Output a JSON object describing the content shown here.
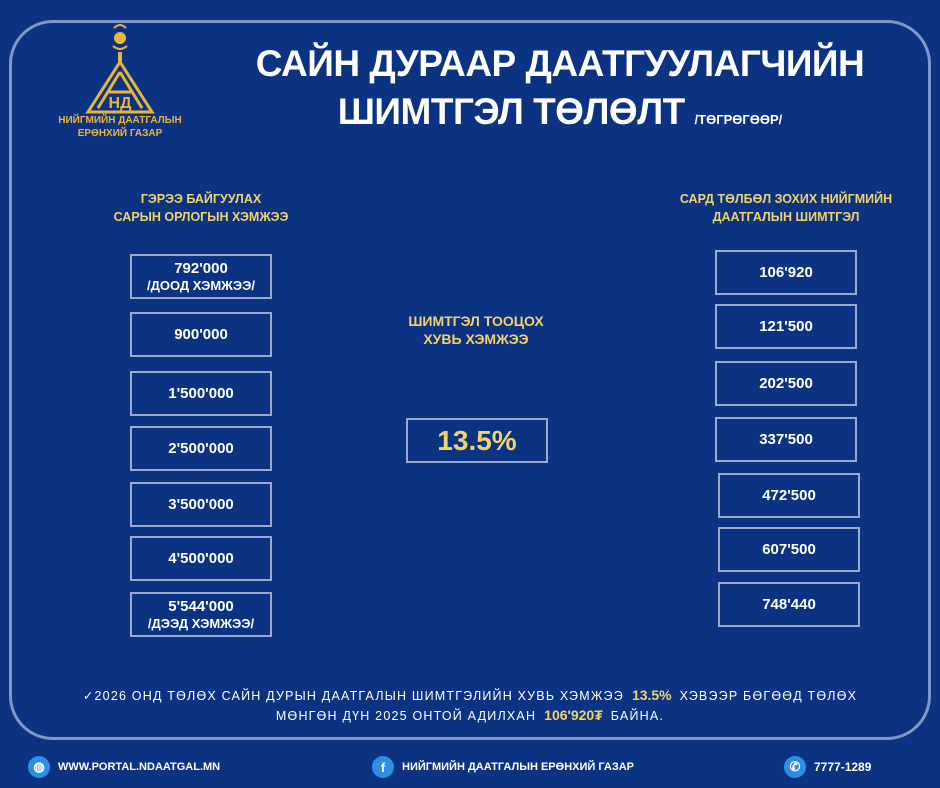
{
  "logo": {
    "line1": "НИЙГМИЙН ДААТГАЛЫН",
    "line2": "ЕРӨНХИЙ ГАЗАР",
    "accent": "#e8b53b"
  },
  "title": {
    "line1": "САЙН ДУРААР ДААТГУУЛАГЧИЙН",
    "line2": "ШИМТГЭЛ ТӨЛӨЛТ",
    "unit": "/ТӨГРӨГӨӨР/"
  },
  "left": {
    "heading1": "ГЭРЭЭ БАЙГУУЛАХ",
    "heading2": "САРЫН ОРЛОГЫН ХЭМЖЭЭ",
    "items": [
      {
        "value": "792'000",
        "note": "/ДООД ХЭМЖЭЭ/"
      },
      {
        "value": "900'000"
      },
      {
        "value": "1'500'000"
      },
      {
        "value": "2'500'000"
      },
      {
        "value": "3'500'000"
      },
      {
        "value": "4'500'000"
      },
      {
        "value": "5'544'000",
        "note": "/ДЭЭД ХЭМЖЭЭ/"
      }
    ]
  },
  "center": {
    "heading1": "ШИМТГЭЛ ТООЦОХ",
    "heading2": "ХУВЬ ХЭМЖЭЭ",
    "rate": "13.5%"
  },
  "right": {
    "heading1": "САРД ТӨЛБӨЛ ЗОХИХ НИЙГМИЙН",
    "heading2": "ДААТГАЛЫН ШИМТГЭЛ",
    "items": [
      "106'920",
      "121'500",
      "202'500",
      "337'500",
      "472'500",
      "607'500",
      "748'440"
    ]
  },
  "note": {
    "part1": "2026 ОНД ТӨЛӨХ САЙН ДУРЫН ДААТГАЛЫН ШИМТГЭЛИЙН ХУВЬ ХЭМЖЭЭ",
    "rate": "13.5%",
    "part2": "ХЭВЭЭР БӨГӨӨД ТӨЛӨХ",
    "part3": "МӨНГӨН ДҮН 2025 ОНТОЙ АДИЛХАН",
    "amount": "106'920₮",
    "part4": "БАЙНА."
  },
  "footer": {
    "website": "WWW.PORTAL.NDAATGAL.MN",
    "facebook": "НИЙГМИЙН ДААТГАЛЫН ЕРӨНХИЙ ГАЗАР",
    "phone": "7777-1289"
  },
  "colors": {
    "background": "#0b3382",
    "highlight": "#f2d36b",
    "border": "#9aa9cc"
  }
}
